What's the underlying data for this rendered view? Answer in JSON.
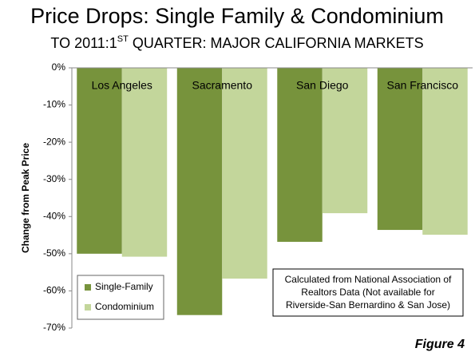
{
  "chart_data": {
    "type": "bar",
    "title": "Price Drops: Single Family & Condominium",
    "subtitle": [
      "TO 2011:1",
      "ST",
      " QUARTER: MAJOR CALIFORNIA MARKETS"
    ],
    "y_label": "Change from Peak Price",
    "categories": [
      "Los Angeles",
      "Sacramento",
      "San Diego",
      "San Francisco"
    ],
    "series": [
      {
        "name": "Single-Family",
        "color": "#77933c",
        "values": [
          -50,
          -66.5,
          -46.8,
          -43.6
        ]
      },
      {
        "name": "Condominium",
        "color": "#c3d69b",
        "values": [
          -50.8,
          -56.7,
          -39.1,
          -44.9
        ]
      }
    ],
    "ylim": [
      -70,
      0
    ],
    "yticks": [
      {
        "value": 0,
        "label": "0%"
      },
      {
        "value": -10,
        "label": "-10%"
      },
      {
        "value": -20,
        "label": "-20%"
      },
      {
        "value": -30,
        "label": "-30%"
      },
      {
        "value": -40,
        "label": "-40%"
      },
      {
        "value": -50,
        "label": "-50%"
      },
      {
        "value": -60,
        "label": "-60%"
      },
      {
        "value": -70,
        "label": "-70%"
      }
    ],
    "grid": false,
    "legend": "lower-left",
    "annotation": [
      "Calculated from National Association of",
      "Realtors Data (Not available for",
      "Riverside-San Bernardino & San Jose)"
    ],
    "footer": "Figure 4"
  }
}
